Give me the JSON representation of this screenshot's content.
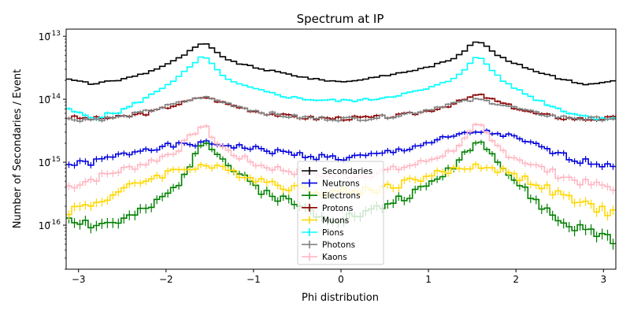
{
  "chart_data": {
    "type": "line",
    "title": "Spectrum at IP",
    "xlabel": "Phi distribution",
    "ylabel": "Number of Secondaries / Event",
    "xlim": [
      -3.1416,
      3.1416
    ],
    "ylim": [
      2e-17,
      1.3e-13
    ],
    "yscale": "log",
    "xticks": [
      -3,
      -2,
      -1,
      0,
      1,
      2,
      3
    ],
    "xtick_labels": [
      "−3",
      "−2",
      "−1",
      "0",
      "1",
      "2",
      "3"
    ],
    "yticks": [
      1e-16,
      1e-15,
      1e-14,
      1e-13
    ],
    "ytick_labels": [
      "10",
      "10",
      "10",
      "10"
    ],
    "ytick_exponents": [
      "−16",
      "−15",
      "−14",
      "−13"
    ],
    "legend_position": "lower-center",
    "grid": false,
    "bins": 100,
    "series": [
      {
        "name": "Secondaries",
        "color": "#000000",
        "x": [
          -3.142,
          -2.827,
          -2.513,
          -2.199,
          -1.885,
          -1.728,
          -1.571,
          -1.414,
          -1.257,
          -0.942,
          -0.628,
          -0.314,
          0.0,
          0.314,
          0.628,
          0.942,
          1.257,
          1.414,
          1.571,
          1.728,
          1.885,
          2.199,
          2.513,
          2.827,
          3.142
        ],
        "y": [
          2.1e-14,
          1.75e-14,
          2.05e-14,
          2.7e-14,
          4.2e-14,
          5.8e-14,
          8e-14,
          5.5e-14,
          4e-14,
          3.1e-14,
          2.55e-14,
          2.1e-14,
          1.9e-14,
          2.1e-14,
          2.55e-14,
          3.1e-14,
          4.2e-14,
          6e-14,
          8.8e-14,
          5.8e-14,
          4.2e-14,
          2.9e-14,
          2.1e-14,
          1.7e-14,
          2e-14
        ]
      },
      {
        "name": "Neutrons",
        "color": "#0000dd",
        "x": [
          -3.142,
          -2.827,
          -2.513,
          -2.199,
          -1.885,
          -1.571,
          -1.257,
          -0.942,
          -0.628,
          -0.314,
          0.0,
          0.314,
          0.628,
          0.942,
          1.257,
          1.571,
          1.885,
          2.199,
          2.513,
          2.827,
          3.142
        ],
        "y": [
          9e-16,
          1e-15,
          1.3e-15,
          1.7e-15,
          1.85e-15,
          2e-15,
          1.85e-15,
          1.6e-15,
          1.4e-15,
          1.25e-15,
          1.15e-15,
          1.25e-15,
          1.5e-15,
          1.95e-15,
          2.5e-15,
          3.1e-15,
          2.7e-15,
          1.9e-15,
          1.3e-15,
          1e-15,
          9e-16
        ]
      },
      {
        "name": "Electrons",
        "color": "#008000",
        "x": [
          -3.142,
          -2.827,
          -2.513,
          -2.199,
          -1.885,
          -1.728,
          -1.571,
          -1.414,
          -1.257,
          -0.942,
          -0.628,
          -0.314,
          0.0,
          0.314,
          0.628,
          0.942,
          1.257,
          1.414,
          1.571,
          1.728,
          1.885,
          2.199,
          2.513,
          2.827,
          3.142
        ],
        "y": [
          1.4e-16,
          1e-16,
          1.15e-16,
          1.8e-16,
          4e-16,
          9.5e-16,
          2.4e-15,
          1.4e-15,
          8e-16,
          3.8e-16,
          2.5e-16,
          1.6e-16,
          1.3e-16,
          1.6e-16,
          2.5e-16,
          3.8e-16,
          8e-16,
          1.4e-15,
          2.2e-15,
          1.5e-15,
          7e-16,
          2.6e-16,
          1.1e-16,
          8e-17,
          6e-17
        ]
      },
      {
        "name": "Protons",
        "color": "#8b0000",
        "x": [
          -3.142,
          -2.827,
          -2.513,
          -2.199,
          -1.885,
          -1.571,
          -1.257,
          -0.942,
          -0.628,
          -0.314,
          0.0,
          0.314,
          0.628,
          0.942,
          1.257,
          1.571,
          1.885,
          2.199,
          2.513,
          2.827,
          3.142
        ],
        "y": [
          5.2e-15,
          4.9e-15,
          5.2e-15,
          6.1e-15,
          8.2e-15,
          1.1e-14,
          8.1e-15,
          6.3e-15,
          5.4e-15,
          5e-15,
          5e-15,
          5.1e-15,
          5.4e-15,
          6.3e-15,
          8.2e-15,
          1.2e-14,
          8.2e-15,
          6e-15,
          5.1e-15,
          4.8e-15,
          5.1e-15
        ]
      },
      {
        "name": "Muons",
        "color": "#ffd700",
        "x": [
          -3.142,
          -2.827,
          -2.513,
          -2.199,
          -1.885,
          -1.571,
          -1.257,
          -0.942,
          -0.628,
          -0.314,
          0.0,
          0.314,
          0.628,
          0.942,
          1.257,
          1.571,
          1.885,
          2.199,
          2.513,
          2.827,
          3.142
        ],
        "y": [
          1.7e-16,
          2.2e-16,
          3.5e-16,
          5.5e-16,
          7.5e-16,
          9e-16,
          7.2e-16,
          5.4e-16,
          4.2e-16,
          3.6e-16,
          3.4e-16,
          3.6e-16,
          4.4e-16,
          5.8e-16,
          7.4e-16,
          9e-16,
          7.2e-16,
          4.8e-16,
          3e-16,
          2e-16,
          1.6e-16
        ]
      },
      {
        "name": "Pions",
        "color": "#00ffff",
        "x": [
          -3.142,
          -2.827,
          -2.513,
          -2.199,
          -1.885,
          -1.728,
          -1.571,
          -1.414,
          -1.257,
          -0.942,
          -0.628,
          -0.314,
          0.0,
          0.314,
          0.628,
          0.942,
          1.257,
          1.414,
          1.571,
          1.728,
          1.885,
          2.199,
          2.513,
          2.827,
          3.142
        ],
        "y": [
          7e-15,
          5e-15,
          6.5e-15,
          1.1e-14,
          2.1e-14,
          3.2e-14,
          5e-14,
          2.9e-14,
          1.9e-14,
          1.4e-14,
          1.1e-14,
          9.8e-15,
          9.5e-15,
          9.8e-15,
          1.15e-14,
          1.4e-14,
          2e-14,
          3e-14,
          5e-14,
          2.9e-14,
          1.8e-14,
          1.05e-14,
          6.8e-15,
          5.2e-15,
          5e-15
        ]
      },
      {
        "name": "Photons",
        "color": "#808080",
        "x": [
          -3.142,
          -2.827,
          -2.513,
          -2.199,
          -1.885,
          -1.571,
          -1.257,
          -0.942,
          -0.628,
          -0.314,
          0.0,
          0.314,
          0.628,
          0.942,
          1.257,
          1.571,
          1.885,
          2.199,
          2.513,
          2.827,
          3.142
        ],
        "y": [
          4.8e-15,
          4.8e-15,
          5.2e-15,
          6.5e-15,
          8.5e-15,
          1.1e-14,
          8.3e-15,
          6.4e-15,
          5.4e-15,
          5e-15,
          4.9e-15,
          5e-15,
          5.5e-15,
          6.6e-15,
          8.5e-15,
          1e-14,
          8e-15,
          6.1e-15,
          5.2e-15,
          4.9e-15,
          5e-15
        ]
      },
      {
        "name": "Kaons",
        "color": "#ffb6c1",
        "x": [
          -3.142,
          -2.827,
          -2.513,
          -2.199,
          -1.885,
          -1.728,
          -1.571,
          -1.414,
          -1.257,
          -0.942,
          -0.628,
          -0.314,
          0.0,
          0.314,
          0.628,
          0.942,
          1.257,
          1.414,
          1.571,
          1.728,
          1.885,
          2.199,
          2.513,
          2.827,
          3.142
        ],
        "y": [
          4e-16,
          5.5e-16,
          7.5e-16,
          1e-15,
          1.5e-15,
          2.5e-15,
          4e-15,
          2e-15,
          1.4e-15,
          9e-16,
          7.5e-16,
          6.5e-16,
          6e-16,
          6.5e-16,
          7.8e-16,
          1e-15,
          1.5e-15,
          2.3e-15,
          4.2e-15,
          2.1e-15,
          1.4e-15,
          9e-16,
          6.2e-16,
          4.5e-16,
          4e-16
        ]
      }
    ]
  }
}
